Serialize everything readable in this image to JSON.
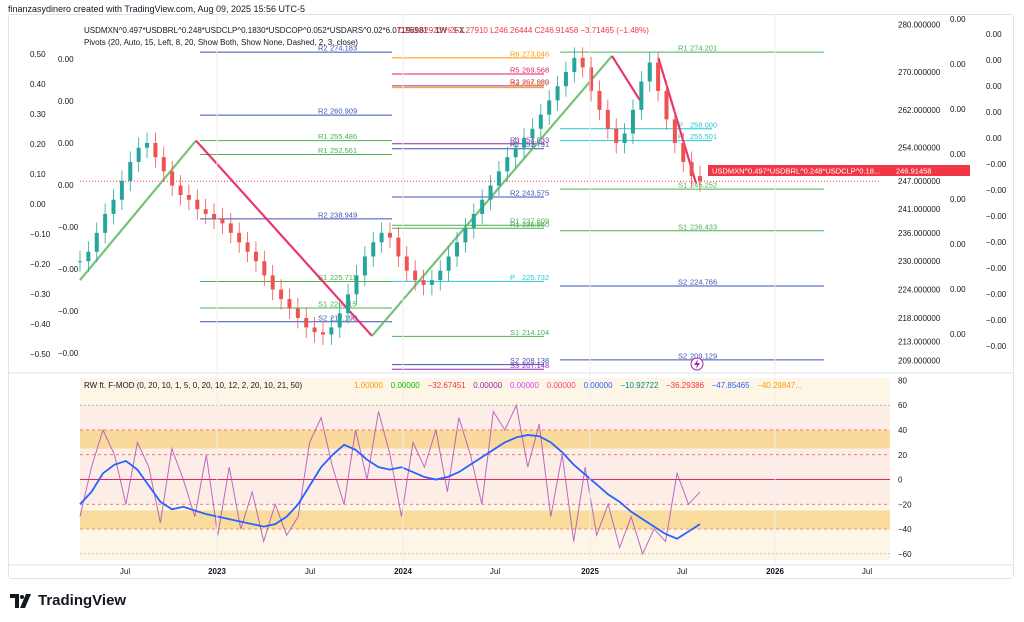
{
  "header": {
    "created": "finanzasydinero created with TradingView.com, Aug 09, 2025 15:56 UTC-5"
  },
  "symbol_line": {
    "symbol": "USDMXN^0.497*USDBRL^0.248*USDCLP^0.1830*USDCOP^0.052*USDARS^0.02*6.07196981 · 1W · FX",
    "ohlc": "O250.62923 H251.27910 L246.26444 C246.91458 −3.71465 (−1.48%)"
  },
  "pivots_line": "Pivots (20, Auto, 15, Left, 8, 20, Show Both, Show None, Dashed, 2, 3, close)",
  "price_tag": {
    "name": "USDMXN^0.497*USDBRL^0.248*USDCLP^0.18...",
    "value": "246.91458",
    "color": "#f23645"
  },
  "osc_line": {
    "title": "RW ft. F-MOD (0, 20, 10, 1, 5, 0, 20, 10, 12, 2, 20, 10, 21, 50)",
    "values": [
      {
        "v": "1.00000",
        "c": "#ff9800"
      },
      {
        "v": "0.00000",
        "c": "#00c800"
      },
      {
        "v": "−32.67451",
        "c": "#f23645"
      },
      {
        "v": "0.00000",
        "c": "#9c27b0"
      },
      {
        "v": "0.00000",
        "c": "#e040fb"
      },
      {
        "v": "0.00000",
        "c": "#ff4081"
      },
      {
        "v": "0.00000",
        "c": "#2962ff"
      },
      {
        "v": "−10.92722",
        "c": "#00897b"
      },
      {
        "v": "−36.29386",
        "c": "#f23645"
      },
      {
        "v": "−47.85465",
        "c": "#2962ff"
      },
      {
        "v": "−40.29847...",
        "c": "#ff9800"
      }
    ]
  },
  "chart_data": [
    {
      "type": "line",
      "title": "USDMXN^0.497*USDBRL^0.248*USDCLP^0.1830*USDCOP^0.052*USDARS^0.02*6.07196981 · 1W · FX",
      "x_ticks": [
        "Jul",
        "2023",
        "Jul",
        "2024",
        "Jul",
        "2025",
        "Jul",
        "2026",
        "Jul"
      ],
      "right_axis_ticks": [
        "280.000000",
        "270.000000",
        "262.000000",
        "254.000000",
        "247.000000",
        "241.000000",
        "236.000000",
        "230.000000",
        "224.000000",
        "218.000000",
        "213.000000",
        "209.000000"
      ],
      "left_axis_1": [
        "0.50",
        "0.40",
        "0.30",
        "0.20",
        "0.10",
        "0.00",
        "−0.10",
        "−0.20",
        "−0.30",
        "−0.40",
        "−0.50"
      ],
      "left_axis_2": [
        "0.00",
        "0.00",
        "0.00",
        "0.00",
        "−0.00",
        "−0.00",
        "−0.00",
        "−0.00"
      ],
      "right_axis_2": [
        "0.00",
        "0.00",
        "0.00",
        "0.00",
        "0.00",
        "0.00",
        "0.00",
        "0.00"
      ],
      "right_axis_3": [
        "0.00",
        "0.00",
        "0.00",
        "0.00",
        "0.00",
        "−0.00",
        "−0.00",
        "−0.00",
        "−0.00",
        "−0.00",
        "−0.00",
        "−0.00",
        "−0.00"
      ],
      "ylim": [
        207,
        281
      ],
      "last_value": 246.91458,
      "pivot_labels": [
        {
          "label": "R2",
          "value": "274.183",
          "y": 274.2,
          "x0": 0.15,
          "x1": 0.39,
          "color": "#3f51b5"
        },
        {
          "label": "R6",
          "value": "273.046",
          "y": 273.0,
          "x0": 0.39,
          "x1": 0.58,
          "color": "#ff9800"
        },
        {
          "label": "R1",
          "value": "274.201",
          "y": 274.2,
          "x0": 0.6,
          "x1": 0.93,
          "color": "#4caf50"
        },
        {
          "label": "R5",
          "value": "269.568",
          "y": 269.57,
          "x0": 0.39,
          "x1": 0.58,
          "color": "#e91e63"
        },
        {
          "label": "R3",
          "value": "267.080",
          "y": 267.08,
          "x0": 0.39,
          "x1": 0.58,
          "color": "#9c27b0"
        },
        {
          "label": "R4",
          "value": "266.697",
          "y": 266.7,
          "x0": 0.39,
          "x1": 0.58,
          "color": "#ff9800"
        },
        {
          "label": "R2",
          "value": "260.909",
          "y": 260.9,
          "x0": 0.15,
          "x1": 0.39,
          "color": "#3f51b5"
        },
        {
          "label": "R1",
          "value": "255.486",
          "y": 255.49,
          "x0": 0.15,
          "x1": 0.39,
          "color": "#4caf50"
        },
        {
          "label": "R1",
          "value": "252.561",
          "y": 252.56,
          "x0": 0.15,
          "x1": 0.39,
          "color": "#4caf50"
        },
        {
          "label": "R3",
          "value": "254.833",
          "y": 254.83,
          "x0": 0.39,
          "x1": 0.58,
          "color": "#9c27b0"
        },
        {
          "label": "R2",
          "value": "253.791",
          "y": 253.79,
          "x0": 0.39,
          "x1": 0.58,
          "color": "#3f51b5"
        },
        {
          "label": "P",
          "value": "255.501",
          "y": 255.5,
          "x0": 0.6,
          "x1": 0.79,
          "color": "#26c6da"
        },
        {
          "label": "P",
          "value": "258.000",
          "y": 258.0,
          "x0": 0.6,
          "x1": 0.79,
          "color": "#26c6da"
        },
        {
          "label": "R2",
          "value": "243.575",
          "y": 243.58,
          "x0": 0.39,
          "x1": 0.58,
          "color": "#3f51b5"
        },
        {
          "label": "S1",
          "value": "245.252",
          "y": 245.25,
          "x0": 0.6,
          "x1": 0.93,
          "color": "#4caf50"
        },
        {
          "label": "R2",
          "value": "238.949",
          "y": 238.95,
          "x0": 0.15,
          "x1": 0.39,
          "color": "#3f51b5"
        },
        {
          "label": "R1",
          "value": "237.609",
          "y": 237.61,
          "x0": 0.39,
          "x1": 0.58,
          "color": "#4caf50"
        },
        {
          "label": "R1",
          "value": "236.960",
          "y": 236.96,
          "x0": 0.39,
          "x1": 0.58,
          "color": "#4caf50"
        },
        {
          "label": "S1",
          "value": "236.433",
          "y": 236.43,
          "x0": 0.6,
          "x1": 0.93,
          "color": "#4caf50"
        },
        {
          "label": "S1",
          "value": "225.711",
          "y": 225.71,
          "x0": 0.15,
          "x1": 0.39,
          "color": "#4caf50"
        },
        {
          "label": "P",
          "value": "225.732",
          "y": 225.73,
          "x0": 0.39,
          "x1": 0.58,
          "color": "#26c6da"
        },
        {
          "label": "S2",
          "value": "224.766",
          "y": 224.77,
          "x0": 0.6,
          "x1": 0.93,
          "color": "#3f51b5"
        },
        {
          "label": "S1",
          "value": "220.115",
          "y": 220.12,
          "x0": 0.15,
          "x1": 0.39,
          "color": "#4caf50"
        },
        {
          "label": "S2",
          "value": "217.190",
          "y": 217.19,
          "x0": 0.15,
          "x1": 0.39,
          "color": "#3f51b5"
        },
        {
          "label": "S1",
          "value": "214.104",
          "y": 214.1,
          "x0": 0.39,
          "x1": 0.58,
          "color": "#4caf50"
        },
        {
          "label": "S2",
          "value": "209.129",
          "y": 209.13,
          "x0": 0.6,
          "x1": 0.93,
          "color": "#3f51b5"
        },
        {
          "label": "S2",
          "value": "208.138",
          "y": 208.14,
          "x0": 0.39,
          "x1": 0.58,
          "color": "#3f51b5"
        },
        {
          "label": "S3",
          "value": "207.148",
          "y": 207.15,
          "x0": 0.39,
          "x1": 0.58,
          "color": "#9c27b0"
        }
      ],
      "series": [
        {
          "name": "close",
          "color": "#26a69a",
          "values": [
            230,
            232,
            236,
            240,
            243,
            247,
            251,
            254,
            255,
            252,
            249,
            246,
            244,
            243,
            241,
            240,
            239,
            238,
            236,
            234,
            232,
            230,
            227,
            224,
            222,
            220,
            218,
            216,
            215,
            214.5,
            216,
            219,
            223,
            227,
            231,
            234,
            236,
            235,
            231,
            228,
            226,
            225,
            226,
            228,
            231,
            234,
            237,
            240,
            243,
            246,
            249,
            252,
            254,
            256,
            258,
            261,
            264,
            267,
            270,
            273,
            271,
            266,
            262,
            258,
            255,
            257,
            262,
            268,
            272,
            266,
            260,
            255,
            251,
            248,
            246.9
          ]
        }
      ],
      "zigzag": [
        {
          "color": "#66bb6a",
          "points": [
            [
              0,
              226
            ],
            [
              0.145,
              255.5
            ]
          ]
        },
        {
          "color": "#e91e63",
          "points": [
            [
              0.145,
              255.5
            ],
            [
              0.365,
              214.2
            ]
          ]
        },
        {
          "color": "#66bb6a",
          "points": [
            [
              0.365,
              214.2
            ],
            [
              0.665,
              273.4
            ]
          ]
        },
        {
          "color": "#e91e63",
          "points": [
            [
              0.665,
              273.4
            ],
            [
              0.7,
              264.0
            ]
          ]
        },
        {
          "color": "#e91e63",
          "points": [
            [
              0.723,
              273.0
            ],
            [
              0.77,
              246.5
            ]
          ]
        }
      ]
    },
    {
      "type": "line",
      "title": "RW ft. F-MOD",
      "y_ticks": [
        "80",
        "60",
        "40",
        "20",
        "0",
        "−20",
        "−40",
        "−60"
      ],
      "ylim": [
        -65,
        82
      ],
      "bands": [
        {
          "from": 25,
          "to": 40,
          "color": "#f7d48a"
        },
        {
          "from": -40,
          "to": -25,
          "color": "#f7d48a"
        }
      ],
      "series": [
        {
          "name": "blue",
          "color": "#2962ff",
          "values": [
            -20,
            -10,
            5,
            12,
            15,
            8,
            -5,
            -18,
            -24,
            -22,
            -25,
            -28,
            -30,
            -32,
            -34,
            -36,
            -38,
            -36,
            -30,
            -20,
            -5,
            10,
            20,
            28,
            24,
            16,
            10,
            8,
            10,
            6,
            2,
            0,
            2,
            6,
            12,
            18,
            24,
            30,
            34,
            36,
            35,
            30,
            22,
            12,
            4,
            -4,
            -12,
            -18,
            -26,
            -32,
            -38,
            -44,
            -47.8,
            -42,
            -36
          ]
        },
        {
          "name": "purple",
          "color": "#ab47bc",
          "values": [
            -30,
            10,
            40,
            20,
            -20,
            30,
            10,
            -35,
            25,
            0,
            -30,
            20,
            -45,
            10,
            -40,
            -10,
            -50,
            -20,
            -45,
            -30,
            30,
            50,
            10,
            -20,
            40,
            0,
            55,
            20,
            -30,
            30,
            10,
            40,
            -10,
            50,
            20,
            -20,
            55,
            40,
            60,
            10,
            45,
            -30,
            20,
            -50,
            10,
            -45,
            -20,
            -55,
            -30,
            -60,
            -40,
            -50,
            5,
            -20,
            -10
          ]
        }
      ]
    }
  ]
}
